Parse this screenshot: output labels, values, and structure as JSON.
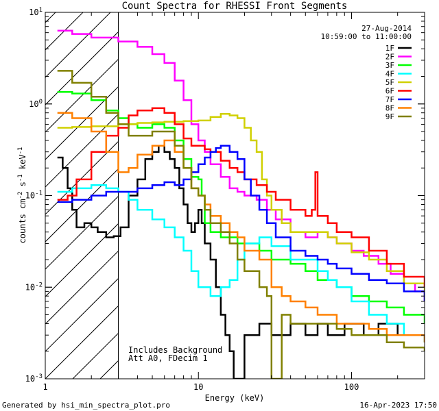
{
  "chart_data": {
    "type": "line",
    "title": "Count Spectra for RHESSI Front Segments",
    "xlabel": "Energy (keV)",
    "ylabel": "counts cm^-2 s^-1 keV^-1",
    "xscale": "log",
    "yscale": "log",
    "xlim": [
      1,
      300
    ],
    "ylim": [
      0.001,
      10
    ],
    "x_ticks": [
      {
        "value": 1,
        "label": "1"
      },
      {
        "value": 10,
        "label": "10"
      },
      {
        "value": 100,
        "label": "100"
      }
    ],
    "y_ticks": [
      {
        "value": 0.001,
        "mant": "10",
        "exp": "-3"
      },
      {
        "value": 0.01,
        "mant": "10",
        "exp": "-2"
      },
      {
        "value": 0.1,
        "mant": "10",
        "exp": "-1"
      },
      {
        "value": 1,
        "mant": "10",
        "exp": "0"
      },
      {
        "value": 10,
        "mant": "10",
        "exp": "1"
      }
    ],
    "date": "27-Aug-2014",
    "time_range": "10:59:00 to 11:00:00",
    "hatched_region_max_kev": 3,
    "annotation_lines": [
      "Includes Background",
      "Att A0, FDecim 1"
    ],
    "footer_left": "Generated by hsi_min_spectra_plot.pro",
    "footer_right": "16-Apr-2023 17:50",
    "series": [
      {
        "name": "1F",
        "color": "#000000",
        "points": [
          [
            1.2,
            0.26
          ],
          [
            1.3,
            0.2
          ],
          [
            1.4,
            0.12
          ],
          [
            1.5,
            0.07
          ],
          [
            1.6,
            0.045
          ],
          [
            1.8,
            0.05
          ],
          [
            2.0,
            0.045
          ],
          [
            2.2,
            0.04
          ],
          [
            2.5,
            0.035
          ],
          [
            2.8,
            0.036
          ],
          [
            3.1,
            0.045
          ],
          [
            3.5,
            0.1
          ],
          [
            4,
            0.15
          ],
          [
            4.5,
            0.25
          ],
          [
            5,
            0.3
          ],
          [
            5.5,
            0.35
          ],
          [
            6,
            0.3
          ],
          [
            6.5,
            0.25
          ],
          [
            7,
            0.2
          ],
          [
            7.5,
            0.12
          ],
          [
            8,
            0.08
          ],
          [
            8.5,
            0.05
          ],
          [
            9,
            0.04
          ],
          [
            9.5,
            0.05
          ],
          [
            10,
            0.07
          ],
          [
            10.5,
            0.05
          ],
          [
            11,
            0.03
          ],
          [
            12,
            0.02
          ],
          [
            13,
            0.01
          ],
          [
            14,
            0.005
          ],
          [
            15,
            0.003
          ],
          [
            16,
            0.002
          ],
          [
            17,
            0.001
          ],
          [
            20,
            0.003
          ],
          [
            25,
            0.004
          ],
          [
            30,
            0.003
          ],
          [
            40,
            0.004
          ],
          [
            50,
            0.003
          ],
          [
            60,
            0.004
          ],
          [
            70,
            0.003
          ],
          [
            90,
            0.004
          ],
          [
            120,
            0.003
          ],
          [
            150,
            0.004
          ],
          [
            200,
            0.003
          ],
          [
            250,
            0.003
          ],
          [
            300,
            0.0025
          ]
        ]
      },
      {
        "name": "2F",
        "color": "#ff00ff",
        "points": [
          [
            1.2,
            6.3
          ],
          [
            1.5,
            5.8
          ],
          [
            2,
            5.3
          ],
          [
            3,
            4.8
          ],
          [
            4,
            4.2
          ],
          [
            5,
            3.5
          ],
          [
            6,
            2.8
          ],
          [
            7,
            1.8
          ],
          [
            8,
            1.1
          ],
          [
            9,
            0.6
          ],
          [
            10,
            0.4
          ],
          [
            11,
            0.3
          ],
          [
            12,
            0.22
          ],
          [
            14,
            0.16
          ],
          [
            16,
            0.12
          ],
          [
            18,
            0.11
          ],
          [
            20,
            0.1
          ],
          [
            24,
            0.09
          ],
          [
            28,
            0.07
          ],
          [
            32,
            0.055
          ],
          [
            40,
            0.04
          ],
          [
            50,
            0.035
          ],
          [
            60,
            0.04
          ],
          [
            70,
            0.035
          ],
          [
            80,
            0.03
          ],
          [
            100,
            0.025
          ],
          [
            120,
            0.022
          ],
          [
            150,
            0.018
          ],
          [
            180,
            0.014
          ],
          [
            220,
            0.011
          ],
          [
            260,
            0.009
          ],
          [
            300,
            0.007
          ]
        ]
      },
      {
        "name": "3F",
        "color": "#00ff00",
        "points": [
          [
            1.2,
            1.35
          ],
          [
            1.5,
            1.3
          ],
          [
            2,
            1.1
          ],
          [
            2.5,
            0.85
          ],
          [
            3,
            0.7
          ],
          [
            3.5,
            0.6
          ],
          [
            4,
            0.55
          ],
          [
            5,
            0.6
          ],
          [
            6,
            0.55
          ],
          [
            7,
            0.4
          ],
          [
            8,
            0.25
          ],
          [
            9,
            0.16
          ],
          [
            10,
            0.15
          ],
          [
            10.5,
            0.1
          ],
          [
            11,
            0.05
          ],
          [
            12,
            0.04
          ],
          [
            14,
            0.035
          ],
          [
            16,
            0.035
          ],
          [
            18,
            0.03
          ],
          [
            20,
            0.03
          ],
          [
            25,
            0.025
          ],
          [
            30,
            0.02
          ],
          [
            40,
            0.018
          ],
          [
            50,
            0.015
          ],
          [
            60,
            0.012
          ],
          [
            80,
            0.01
          ],
          [
            100,
            0.008
          ],
          [
            130,
            0.007
          ],
          [
            170,
            0.006
          ],
          [
            220,
            0.005
          ],
          [
            300,
            0.004
          ]
        ]
      },
      {
        "name": "4F",
        "color": "#00ffff",
        "points": [
          [
            1.2,
            0.11
          ],
          [
            1.5,
            0.12
          ],
          [
            2,
            0.13
          ],
          [
            2.5,
            0.12
          ],
          [
            3,
            0.11
          ],
          [
            3.5,
            0.09
          ],
          [
            4,
            0.07
          ],
          [
            5,
            0.055
          ],
          [
            6,
            0.045
          ],
          [
            7,
            0.035
          ],
          [
            8,
            0.025
          ],
          [
            9,
            0.015
          ],
          [
            10,
            0.01
          ],
          [
            12,
            0.008
          ],
          [
            14,
            0.01
          ],
          [
            16,
            0.012
          ],
          [
            18,
            0.02
          ],
          [
            20,
            0.03
          ],
          [
            25,
            0.035
          ],
          [
            30,
            0.028
          ],
          [
            40,
            0.02
          ],
          [
            50,
            0.02
          ],
          [
            60,
            0.015
          ],
          [
            70,
            0.012
          ],
          [
            80,
            0.01
          ],
          [
            100,
            0.007
          ],
          [
            130,
            0.005
          ],
          [
            170,
            0.004
          ],
          [
            220,
            0.003
          ],
          [
            300,
            0.0025
          ]
        ]
      },
      {
        "name": "5F",
        "color": "#d0d000",
        "points": [
          [
            1.2,
            0.55
          ],
          [
            1.5,
            0.56
          ],
          [
            2,
            0.57
          ],
          [
            3,
            0.6
          ],
          [
            4,
            0.62
          ],
          [
            5,
            0.63
          ],
          [
            6,
            0.64
          ],
          [
            8,
            0.65
          ],
          [
            10,
            0.66
          ],
          [
            12,
            0.72
          ],
          [
            14,
            0.78
          ],
          [
            16,
            0.75
          ],
          [
            18,
            0.7
          ],
          [
            20,
            0.55
          ],
          [
            22,
            0.4
          ],
          [
            24,
            0.3
          ],
          [
            26,
            0.15
          ],
          [
            28,
            0.1
          ],
          [
            30,
            0.07
          ],
          [
            35,
            0.05
          ],
          [
            40,
            0.04
          ],
          [
            50,
            0.04
          ],
          [
            60,
            0.04
          ],
          [
            70,
            0.035
          ],
          [
            80,
            0.03
          ],
          [
            100,
            0.024
          ],
          [
            130,
            0.02
          ],
          [
            170,
            0.015
          ],
          [
            220,
            0.011
          ],
          [
            300,
            0.008
          ]
        ]
      },
      {
        "name": "6F",
        "color": "#ff0000",
        "points": [
          [
            1.2,
            0.09
          ],
          [
            1.4,
            0.1
          ],
          [
            1.6,
            0.15
          ],
          [
            2.0,
            0.3
          ],
          [
            2.5,
            0.45
          ],
          [
            3,
            0.55
          ],
          [
            3.5,
            0.75
          ],
          [
            4,
            0.85
          ],
          [
            5,
            0.9
          ],
          [
            6,
            0.8
          ],
          [
            7,
            0.6
          ],
          [
            8,
            0.42
          ],
          [
            9,
            0.35
          ],
          [
            10,
            0.35
          ],
          [
            11,
            0.32
          ],
          [
            12,
            0.3
          ],
          [
            14,
            0.24
          ],
          [
            16,
            0.2
          ],
          [
            18,
            0.18
          ],
          [
            20,
            0.15
          ],
          [
            24,
            0.13
          ],
          [
            28,
            0.11
          ],
          [
            32,
            0.09
          ],
          [
            40,
            0.07
          ],
          [
            50,
            0.06
          ],
          [
            55,
            0.07
          ],
          [
            58,
            0.18
          ],
          [
            60,
            0.06
          ],
          [
            70,
            0.05
          ],
          [
            80,
            0.04
          ],
          [
            100,
            0.035
          ],
          [
            130,
            0.025
          ],
          [
            170,
            0.018
          ],
          [
            220,
            0.013
          ],
          [
            300,
            0.01
          ]
        ]
      },
      {
        "name": "7F",
        "color": "#0000ff",
        "points": [
          [
            1.2,
            0.085
          ],
          [
            1.5,
            0.09
          ],
          [
            2,
            0.1
          ],
          [
            2.5,
            0.11
          ],
          [
            3,
            0.11
          ],
          [
            3.5,
            0.11
          ],
          [
            4,
            0.12
          ],
          [
            5,
            0.13
          ],
          [
            6,
            0.14
          ],
          [
            7,
            0.13
          ],
          [
            8,
            0.15
          ],
          [
            9,
            0.18
          ],
          [
            10,
            0.22
          ],
          [
            11,
            0.26
          ],
          [
            12,
            0.3
          ],
          [
            13,
            0.33
          ],
          [
            14,
            0.35
          ],
          [
            16,
            0.3
          ],
          [
            18,
            0.25
          ],
          [
            20,
            0.15
          ],
          [
            22,
            0.1
          ],
          [
            25,
            0.07
          ],
          [
            28,
            0.05
          ],
          [
            32,
            0.035
          ],
          [
            40,
            0.025
          ],
          [
            50,
            0.022
          ],
          [
            60,
            0.02
          ],
          [
            70,
            0.018
          ],
          [
            80,
            0.016
          ],
          [
            100,
            0.014
          ],
          [
            130,
            0.012
          ],
          [
            170,
            0.011
          ],
          [
            220,
            0.009
          ],
          [
            300,
            0.007
          ]
        ]
      },
      {
        "name": "8F",
        "color": "#ff8000",
        "points": [
          [
            1.2,
            0.8
          ],
          [
            1.5,
            0.7
          ],
          [
            2,
            0.5
          ],
          [
            2.5,
            0.3
          ],
          [
            3,
            0.18
          ],
          [
            3.5,
            0.2
          ],
          [
            4,
            0.28
          ],
          [
            5,
            0.35
          ],
          [
            6,
            0.4
          ],
          [
            7,
            0.3
          ],
          [
            8,
            0.2
          ],
          [
            9,
            0.12
          ],
          [
            10,
            0.1
          ],
          [
            11,
            0.08
          ],
          [
            12,
            0.06
          ],
          [
            14,
            0.05
          ],
          [
            16,
            0.04
          ],
          [
            18,
            0.035
          ],
          [
            20,
            0.025
          ],
          [
            25,
            0.02
          ],
          [
            30,
            0.01
          ],
          [
            35,
            0.008
          ],
          [
            40,
            0.007
          ],
          [
            50,
            0.006
          ],
          [
            60,
            0.005
          ],
          [
            80,
            0.004
          ],
          [
            100,
            0.004
          ],
          [
            130,
            0.0035
          ],
          [
            170,
            0.003
          ],
          [
            220,
            0.003
          ],
          [
            300,
            0.0025
          ]
        ]
      },
      {
        "name": "9F",
        "color": "#808000",
        "points": [
          [
            1.2,
            2.3
          ],
          [
            1.5,
            1.7
          ],
          [
            2,
            1.2
          ],
          [
            2.5,
            0.8
          ],
          [
            3,
            0.6
          ],
          [
            3.5,
            0.45
          ],
          [
            4,
            0.45
          ],
          [
            5,
            0.5
          ],
          [
            6,
            0.5
          ],
          [
            7,
            0.35
          ],
          [
            8,
            0.2
          ],
          [
            9,
            0.12
          ],
          [
            10,
            0.1
          ],
          [
            11,
            0.07
          ],
          [
            12,
            0.05
          ],
          [
            14,
            0.04
          ],
          [
            16,
            0.03
          ],
          [
            18,
            0.02
          ],
          [
            20,
            0.015
          ],
          [
            25,
            0.01
          ],
          [
            28,
            0.008
          ],
          [
            30,
            0.001
          ],
          [
            35,
            0.005
          ],
          [
            40,
            0.004
          ],
          [
            50,
            0.004
          ],
          [
            60,
            0.004
          ],
          [
            80,
            0.0035
          ],
          [
            100,
            0.003
          ],
          [
            130,
            0.003
          ],
          [
            170,
            0.0025
          ],
          [
            220,
            0.0022
          ],
          [
            300,
            0.002
          ]
        ]
      }
    ]
  }
}
